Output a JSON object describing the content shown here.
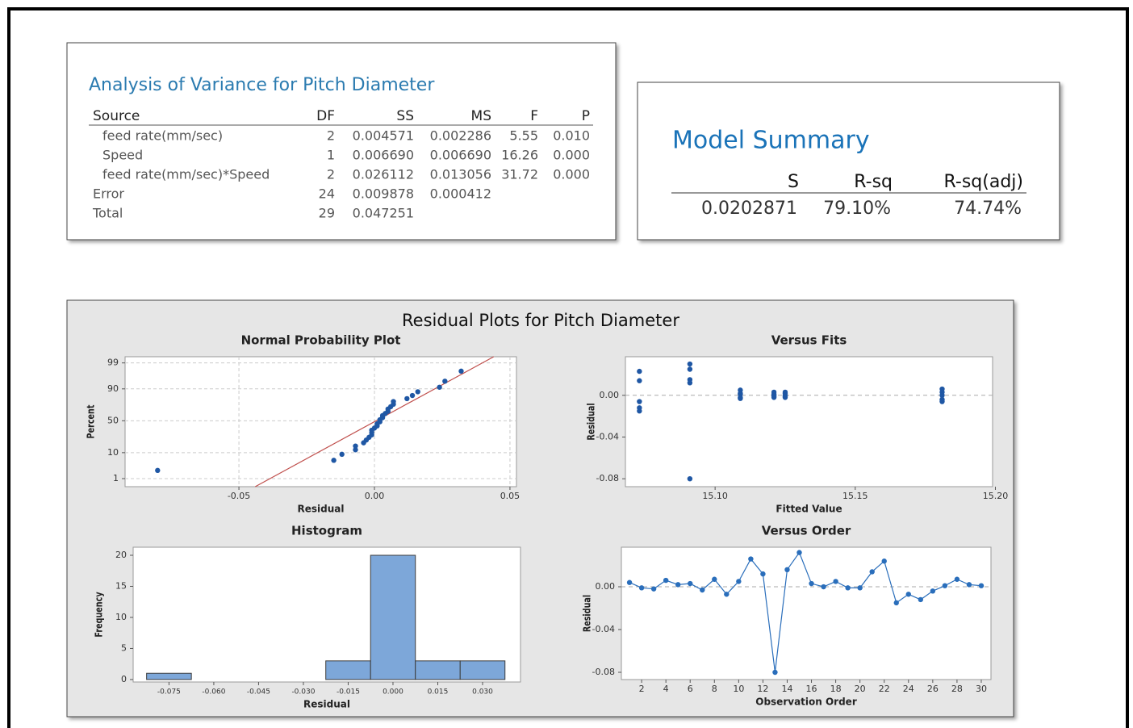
{
  "anova": {
    "title": "Analysis of Variance for Pitch Diameter",
    "columns": [
      "Source",
      "DF",
      "SS",
      "MS",
      "F",
      "P"
    ],
    "rows": [
      [
        "feed rate(mm/sec)",
        "2",
        "0.004571",
        "0.002286",
        "5.55",
        "0.010"
      ],
      [
        "Speed",
        "1",
        "0.006690",
        "0.006690",
        "16.26",
        "0.000"
      ],
      [
        "feed rate(mm/sec)*Speed",
        "2",
        "0.026112",
        "0.013056",
        "31.72",
        "0.000"
      ],
      [
        "Error",
        "24",
        "0.009878",
        "0.000412"
      ],
      [
        "Total",
        "29",
        "0.047251"
      ]
    ]
  },
  "model_summary": {
    "title": "Model Summary",
    "columns": [
      "S",
      "R-sq",
      "R-sq(adj)"
    ],
    "rows": [
      [
        "0.0202871",
        "79.10%",
        "74.74%"
      ]
    ]
  },
  "residual_plots": {
    "title": "Residual Plots for Pitch Diameter"
  },
  "chart_data": [
    {
      "type": "probability",
      "title": "Normal Probability Plot",
      "x_label": "Residual",
      "y_label": "Percent",
      "yscale": "probit",
      "grid": true,
      "color": "#1f57a4",
      "line_color": "#c0504d",
      "xlim": [
        -0.092,
        0.0524
      ],
      "ylim": [
        0.4,
        99.5
      ],
      "xticks": [
        -0.05,
        {
          "value": 0,
          "label": "0.00"
        },
        0.05
      ],
      "yticks": [
        1,
        10,
        50,
        90,
        99
      ],
      "x": [
        -0.08,
        -0.015,
        -0.012,
        -0.007,
        -0.007,
        -0.004,
        -0.003,
        -0.002,
        -0.001,
        -0.001,
        -0.001,
        0.0,
        0.001,
        0.001,
        0.002,
        0.002,
        0.003,
        0.003,
        0.004,
        0.005,
        0.005,
        0.006,
        0.007,
        0.007,
        0.012,
        0.014,
        0.016,
        0.024,
        0.026,
        0.032
      ],
      "values": [
        2.3,
        5.6,
        8.9,
        12.2,
        15.5,
        18.8,
        22.0,
        25.3,
        28.6,
        31.9,
        35.2,
        38.5,
        41.8,
        45.1,
        48.4,
        51.6,
        54.9,
        58.2,
        61.5,
        64.8,
        68.1,
        71.4,
        74.7,
        78.0,
        81.3,
        84.5,
        87.8,
        91.1,
        94.4,
        97.7
      ],
      "fit_line": {
        "x": [
          -0.044,
          0.044
        ],
        "y": [
          0.4,
          99.5
        ]
      }
    },
    {
      "type": "scatter",
      "title": "Versus Fits",
      "x_label": "Fitted Value",
      "y_label": "Residual",
      "color": "#1f57a4",
      "reference_y": 0,
      "xlim": [
        15.068,
        15.199
      ],
      "ylim": [
        -0.0876,
        0.037
      ],
      "xticks": [
        {
          "value": 15.1,
          "label": "15.10"
        },
        15.15,
        {
          "value": 15.2,
          "label": "15.20"
        }
      ],
      "yticks": [
        {
          "value": 0,
          "label": "0.00"
        },
        -0.04,
        -0.08
      ],
      "x": [
        15.073,
        15.073,
        15.073,
        15.073,
        15.073,
        15.091,
        15.091,
        15.091,
        15.091,
        15.091,
        15.109,
        15.109,
        15.109,
        15.109,
        15.109,
        15.121,
        15.121,
        15.121,
        15.121,
        15.121,
        15.125,
        15.125,
        15.125,
        15.125,
        15.125,
        15.181,
        15.181,
        15.181,
        15.181,
        15.181
      ],
      "values": [
        0.023,
        0.014,
        -0.006,
        -0.012,
        -0.015,
        0.03,
        0.025,
        0.015,
        0.012,
        -0.08,
        0.005,
        0.002,
        -0.003,
        0.001,
        -0.002,
        0.003,
        0.0,
        -0.002,
        0.001,
        -0.001,
        0.003,
        0.0,
        -0.002,
        0.002,
        -0.001,
        0.006,
        0.003,
        0.0,
        -0.004,
        -0.006
      ]
    },
    {
      "type": "histogram",
      "title": "Histogram",
      "x_label": "Residual",
      "y_label": "Frequency",
      "color": "#7da7d9",
      "xlim": [
        -0.087,
        0.0427
      ],
      "ylim": [
        -0.4,
        21.3
      ],
      "xticks": [
        -0.075,
        {
          "value": -0.06,
          "label": "-0.060"
        },
        -0.045,
        {
          "value": -0.03,
          "label": "-0.030"
        },
        -0.015,
        {
          "value": 0,
          "label": "0.000"
        },
        0.015,
        {
          "value": 0.03,
          "label": "0.030"
        }
      ],
      "yticks": [
        0,
        5,
        10,
        15,
        20
      ],
      "bins": [
        -0.0825,
        -0.0675,
        -0.0525,
        -0.0375,
        -0.0225,
        -0.0075,
        0.0075,
        0.0225,
        0.0375
      ],
      "values": [
        1,
        0,
        0,
        0,
        3,
        20,
        3,
        3
      ]
    },
    {
      "type": "line",
      "title": "Versus Order",
      "x_label": "Observation Order",
      "y_label": "Residual",
      "color": "#2a6ebb",
      "reference_y": 0,
      "xlim": [
        0.33,
        30.8
      ],
      "ylim": [
        -0.0868,
        0.037
      ],
      "xticks": [
        2,
        4,
        6,
        8,
        10,
        12,
        14,
        16,
        18,
        20,
        22,
        24,
        26,
        28,
        30
      ],
      "yticks": [
        {
          "value": 0,
          "label": "0.00"
        },
        -0.04,
        -0.08
      ],
      "x": [
        1,
        2,
        3,
        4,
        5,
        6,
        7,
        8,
        9,
        10,
        11,
        12,
        13,
        14,
        15,
        16,
        17,
        18,
        19,
        20,
        21,
        22,
        23,
        24,
        25,
        26,
        27,
        28,
        29,
        30
      ],
      "values": [
        0.004,
        -0.001,
        -0.002,
        0.006,
        0.002,
        0.003,
        -0.003,
        0.007,
        -0.007,
        0.005,
        0.026,
        0.012,
        -0.08,
        0.016,
        0.032,
        0.003,
        0.0,
        0.005,
        -0.001,
        -0.001,
        0.014,
        0.024,
        -0.015,
        -0.007,
        -0.012,
        -0.004,
        0.001,
        0.007,
        0.002,
        0.001
      ]
    }
  ]
}
